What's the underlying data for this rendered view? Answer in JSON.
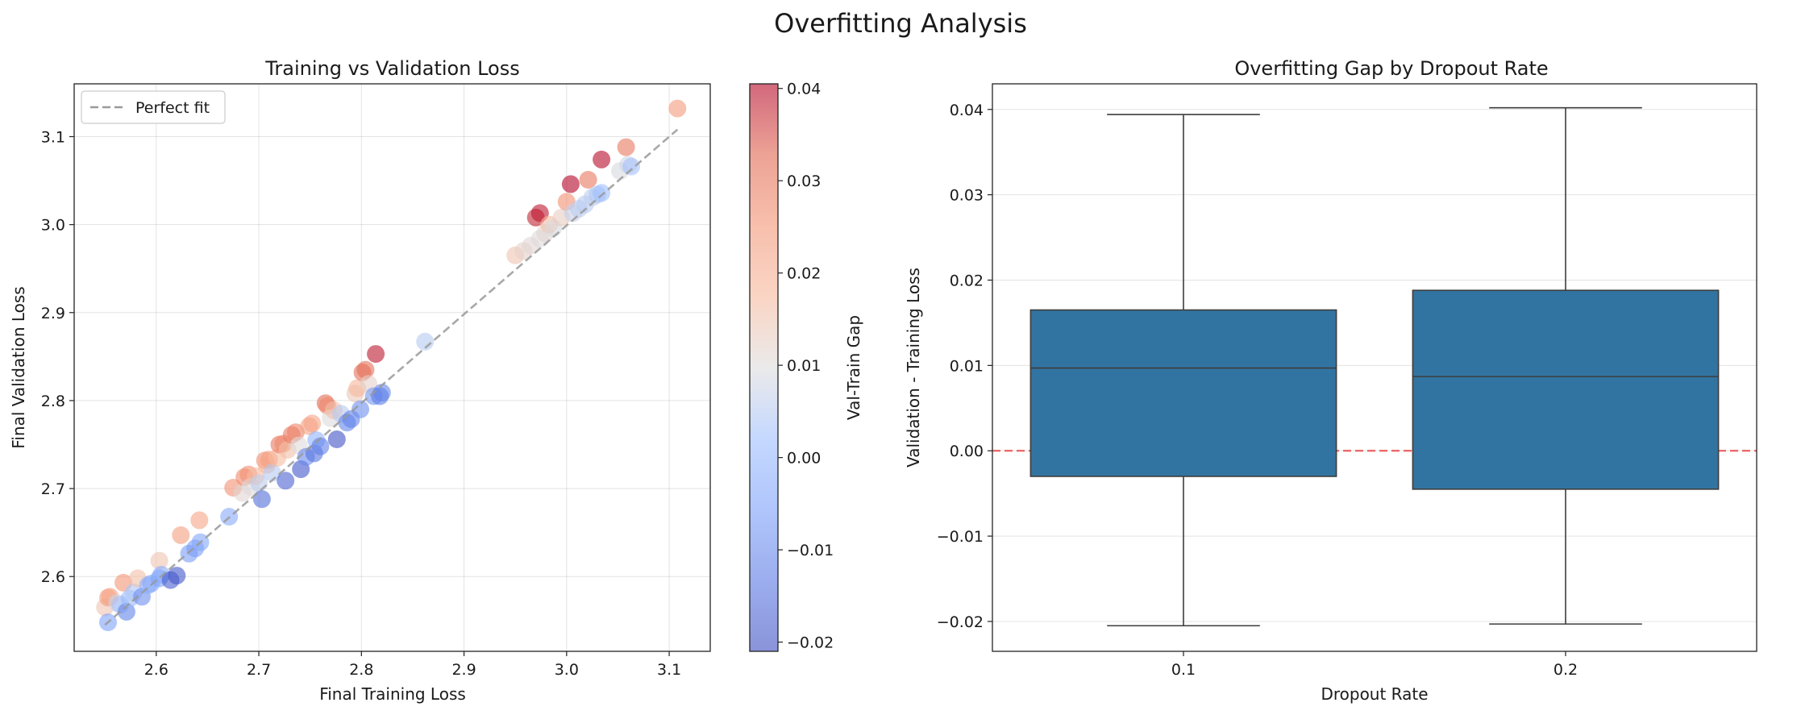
{
  "figure": {
    "title": "Overfitting Analysis"
  },
  "chart_data": [
    {
      "type": "scatter",
      "title": "Training vs Validation Loss",
      "xlabel": "Final Training Loss",
      "ylabel": "Final Validation Loss",
      "xlim": [
        2.52,
        3.14
      ],
      "ylim": [
        2.515,
        3.16
      ],
      "xticks": [
        "2.6",
        "2.7",
        "2.8",
        "2.9",
        "3.0",
        "3.1"
      ],
      "yticks": [
        "2.6",
        "2.7",
        "2.8",
        "2.9",
        "3.0",
        "3.1"
      ],
      "grid": true,
      "legend": {
        "position": "top-left",
        "entries": [
          "Perfect fit"
        ]
      },
      "reference_line": {
        "name": "Perfect fit",
        "from": [
          2.55,
          2.545
        ],
        "to": [
          3.108,
          3.108
        ],
        "style": "dashed",
        "color": "#999999"
      },
      "colorbar": {
        "label": "Val-Train Gap",
        "min": -0.021,
        "max": 0.0405,
        "ticks": [
          "0.04",
          "0.03",
          "0.02",
          "0.01",
          "0.00",
          "−0.01",
          "−0.02"
        ],
        "tick_values": [
          0.04,
          0.03,
          0.02,
          0.01,
          0.0,
          -0.01,
          -0.02
        ],
        "colormap": "coolwarm"
      },
      "points": [
        [
          2.55,
          2.565,
          0.015
        ],
        [
          2.553,
          2.576,
          0.023
        ],
        [
          2.555,
          2.577,
          0.022
        ],
        [
          2.553,
          2.548,
          -0.005
        ],
        [
          2.562,
          2.57,
          0.008
        ],
        [
          2.565,
          2.568,
          0.003
        ],
        [
          2.568,
          2.593,
          0.025
        ],
        [
          2.571,
          2.56,
          -0.011
        ],
        [
          2.574,
          2.575,
          0.001
        ],
        [
          2.578,
          2.582,
          0.004
        ],
        [
          2.582,
          2.598,
          0.016
        ],
        [
          2.586,
          2.577,
          -0.009
        ],
        [
          2.592,
          2.59,
          -0.002
        ],
        [
          2.595,
          2.592,
          -0.003
        ],
        [
          2.603,
          2.618,
          0.015
        ],
        [
          2.603,
          2.598,
          -0.005
        ],
        [
          2.605,
          2.602,
          -0.003
        ],
        [
          2.614,
          2.596,
          -0.018
        ],
        [
          2.62,
          2.601,
          -0.019
        ],
        [
          2.624,
          2.647,
          0.023
        ],
        [
          2.632,
          2.626,
          -0.006
        ],
        [
          2.638,
          2.632,
          -0.006
        ],
        [
          2.642,
          2.664,
          0.022
        ],
        [
          2.643,
          2.639,
          -0.004
        ],
        [
          2.671,
          2.668,
          -0.003
        ],
        [
          2.675,
          2.701,
          0.026
        ],
        [
          2.684,
          2.695,
          0.011
        ],
        [
          2.686,
          2.713,
          0.027
        ],
        [
          2.69,
          2.716,
          0.026
        ],
        [
          2.692,
          2.702,
          0.01
        ],
        [
          2.697,
          2.714,
          0.017
        ],
        [
          2.7,
          2.706,
          0.006
        ],
        [
          2.703,
          2.688,
          -0.015
        ],
        [
          2.706,
          2.732,
          0.026
        ],
        [
          2.708,
          2.727,
          0.019
        ],
        [
          2.71,
          2.733,
          0.023
        ],
        [
          2.713,
          2.718,
          0.005
        ],
        [
          2.718,
          2.735,
          0.017
        ],
        [
          2.72,
          2.75,
          0.03
        ],
        [
          2.724,
          2.751,
          0.027
        ],
        [
          2.726,
          2.709,
          -0.017
        ],
        [
          2.728,
          2.744,
          0.016
        ],
        [
          2.732,
          2.761,
          0.029
        ],
        [
          2.736,
          2.764,
          0.028
        ],
        [
          2.739,
          2.749,
          0.01
        ],
        [
          2.741,
          2.722,
          -0.019
        ],
        [
          2.746,
          2.736,
          -0.01
        ],
        [
          2.749,
          2.771,
          0.022
        ],
        [
          2.752,
          2.774,
          0.022
        ],
        [
          2.754,
          2.74,
          -0.014
        ],
        [
          2.756,
          2.755,
          -0.001
        ],
        [
          2.76,
          2.748,
          -0.012
        ],
        [
          2.765,
          2.797,
          0.032
        ],
        [
          2.767,
          2.794,
          0.027
        ],
        [
          2.77,
          2.78,
          0.01
        ],
        [
          2.773,
          2.789,
          0.016
        ],
        [
          2.776,
          2.756,
          -0.02
        ],
        [
          2.78,
          2.785,
          0.005
        ],
        [
          2.786,
          2.775,
          -0.011
        ],
        [
          2.79,
          2.779,
          -0.011
        ],
        [
          2.794,
          2.808,
          0.014
        ],
        [
          2.796,
          2.814,
          0.018
        ],
        [
          2.799,
          2.79,
          -0.009
        ],
        [
          2.801,
          2.832,
          0.031
        ],
        [
          2.804,
          2.835,
          0.031
        ],
        [
          2.807,
          2.819,
          0.012
        ],
        [
          2.812,
          2.805,
          -0.007
        ],
        [
          2.814,
          2.853,
          0.039
        ],
        [
          2.818,
          2.805,
          -0.013
        ],
        [
          2.82,
          2.809,
          -0.011
        ],
        [
          2.862,
          2.867,
          0.005
        ],
        [
          2.95,
          2.965,
          0.015
        ],
        [
          2.958,
          2.97,
          0.012
        ],
        [
          2.965,
          2.976,
          0.011
        ],
        [
          2.97,
          3.008,
          0.038
        ],
        [
          2.974,
          3.013,
          0.039
        ],
        [
          2.974,
          2.984,
          0.01
        ],
        [
          2.979,
          2.99,
          0.011
        ],
        [
          2.983,
          3.0,
          0.017
        ],
        [
          2.987,
          2.996,
          0.009
        ],
        [
          2.995,
          3.008,
          0.013
        ],
        [
          3.0,
          3.026,
          0.026
        ],
        [
          3.004,
          3.046,
          0.042
        ],
        [
          3.006,
          3.013,
          0.007
        ],
        [
          3.012,
          3.018,
          0.006
        ],
        [
          3.018,
          3.023,
          0.005
        ],
        [
          3.021,
          3.051,
          0.03
        ],
        [
          3.025,
          3.031,
          0.006
        ],
        [
          3.03,
          3.034,
          0.004
        ],
        [
          3.034,
          3.074,
          0.04
        ],
        [
          3.034,
          3.036,
          0.002
        ],
        [
          3.052,
          3.061,
          0.009
        ],
        [
          3.058,
          3.088,
          0.03
        ],
        [
          3.06,
          3.068,
          0.008
        ],
        [
          3.063,
          3.066,
          0.003
        ],
        [
          3.108,
          3.132,
          0.024
        ]
      ]
    },
    {
      "type": "box",
      "title": "Overfitting Gap by Dropout Rate",
      "xlabel": "Dropout Rate",
      "ylabel": "Validation - Training Loss",
      "ylim": [
        -0.0235,
        0.043
      ],
      "yticks": [
        "0.04",
        "0.03",
        "0.02",
        "0.01",
        "0.00",
        "−0.01",
        "−0.02"
      ],
      "ytick_values": [
        0.04,
        0.03,
        0.02,
        0.01,
        0.0,
        -0.01,
        -0.02
      ],
      "grid": true,
      "reference_line": {
        "y": 0.0,
        "style": "dashed",
        "color": "#ee5a5a"
      },
      "box_color": "#3274a1",
      "categories": [
        "0.1",
        "0.2"
      ],
      "boxes": [
        {
          "category": "0.1",
          "whisker_low": -0.0205,
          "q1": -0.003,
          "median": 0.0097,
          "q3": 0.0165,
          "whisker_high": 0.0394
        },
        {
          "category": "0.2",
          "whisker_low": -0.0203,
          "q1": -0.0045,
          "median": 0.0087,
          "q3": 0.0188,
          "whisker_high": 0.0402
        }
      ]
    }
  ]
}
